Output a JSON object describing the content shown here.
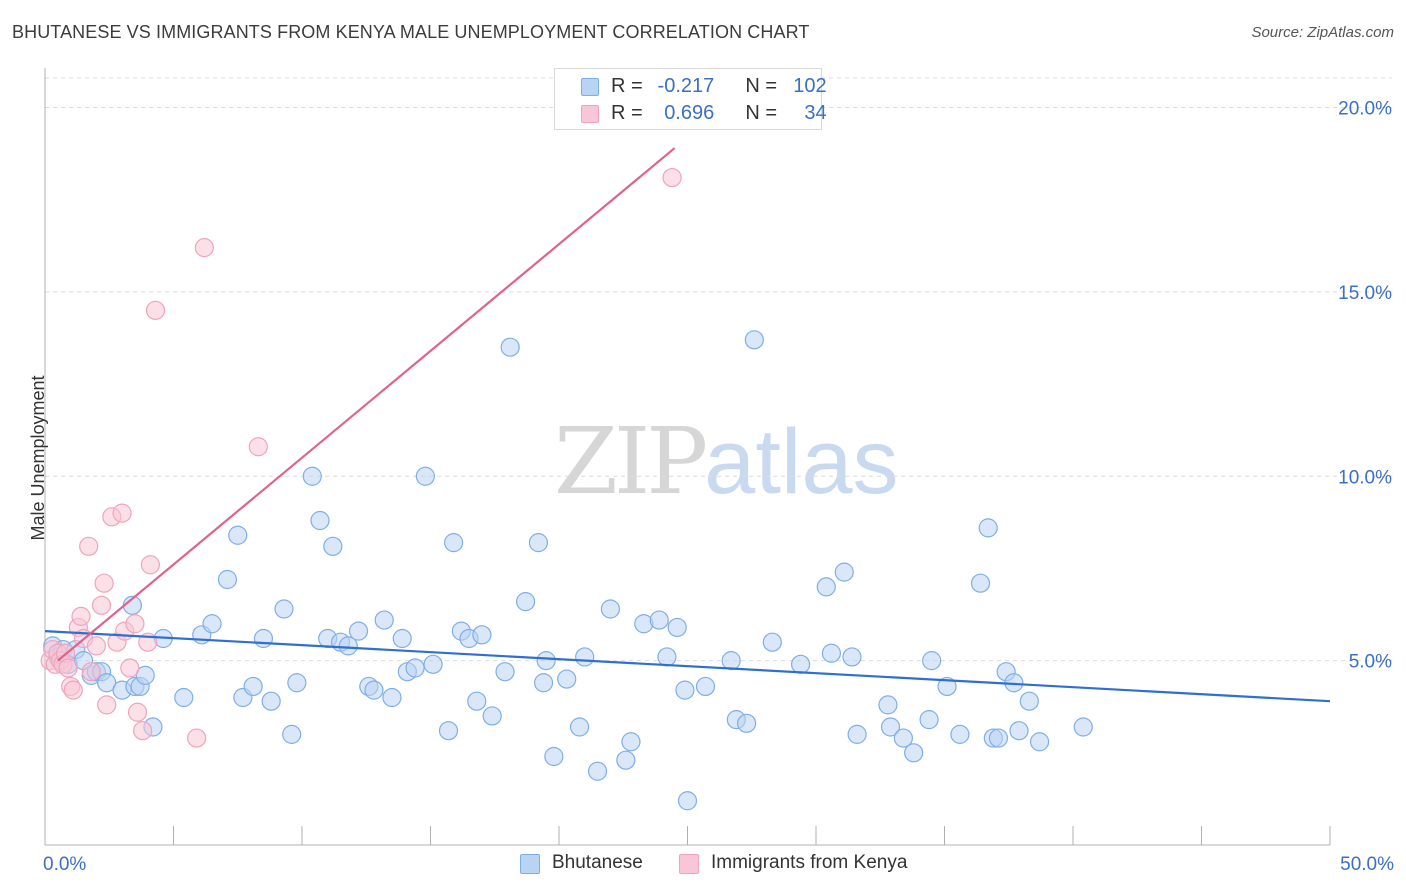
{
  "title": "BHUTANESE VS IMMIGRANTS FROM KENYA MALE UNEMPLOYMENT CORRELATION CHART",
  "source": "Source: ZipAtlas.com",
  "watermark": {
    "part1": "ZIP",
    "part2": "atlas"
  },
  "colors": {
    "blue": "#7eaee8",
    "blue_fill": "#b9d3f3",
    "blue_line": "#2f6fd0",
    "pink": "#f0a3bc",
    "pink_fill": "#f8c6d6",
    "pink_line": "#e0628d",
    "tick_label": "#3a6fc4",
    "grid": "#dcdcdc"
  },
  "legend_top": [
    {
      "r_label": "R =",
      "r_value": "-0.217",
      "n_label": "N =",
      "n_value": "102"
    },
    {
      "r_label": "R =",
      "r_value": "0.696",
      "n_label": "N =",
      "n_value": "34"
    }
  ],
  "chart_data": {
    "type": "scatter",
    "title": "BHUTANESE VS IMMIGRANTS FROM KENYA MALE UNEMPLOYMENT CORRELATION CHART",
    "xlabel": "",
    "ylabel": "Male Unemployment",
    "xlim": [
      0,
      50
    ],
    "ylim": [
      0,
      20.8
    ],
    "x_tick_labels": [
      "0.0%",
      "50.0%"
    ],
    "y_ticks": [
      5,
      10,
      15,
      20
    ],
    "y_tick_labels": [
      "5.0%",
      "10.0%",
      "15.0%",
      "20.0%"
    ],
    "grid": "horizontal dashed",
    "legend": "bottom-center",
    "series": [
      {
        "name": "Bhutanese",
        "trend": {
          "x": [
            0,
            50
          ],
          "y": [
            5.8,
            3.9
          ]
        },
        "points": [
          [
            0.3,
            5.4
          ],
          [
            0.5,
            5.1
          ],
          [
            0.7,
            5.3
          ],
          [
            0.9,
            4.9
          ],
          [
            1.2,
            5.3
          ],
          [
            1.5,
            5.0
          ],
          [
            1.8,
            4.6
          ],
          [
            2.0,
            4.7
          ],
          [
            2.2,
            4.7
          ],
          [
            2.4,
            4.4
          ],
          [
            3.0,
            4.2
          ],
          [
            3.4,
            6.5
          ],
          [
            3.5,
            4.3
          ],
          [
            3.7,
            4.3
          ],
          [
            3.9,
            4.6
          ],
          [
            4.2,
            3.2
          ],
          [
            4.6,
            5.6
          ],
          [
            5.4,
            4.0
          ],
          [
            6.1,
            5.7
          ],
          [
            6.5,
            6.0
          ],
          [
            7.1,
            7.2
          ],
          [
            7.5,
            8.4
          ],
          [
            7.7,
            4.0
          ],
          [
            8.1,
            4.3
          ],
          [
            8.5,
            5.6
          ],
          [
            8.8,
            3.9
          ],
          [
            9.3,
            6.4
          ],
          [
            9.6,
            3.0
          ],
          [
            9.8,
            4.4
          ],
          [
            10.4,
            10.0
          ],
          [
            10.7,
            8.8
          ],
          [
            11.0,
            5.6
          ],
          [
            11.2,
            8.1
          ],
          [
            11.5,
            5.5
          ],
          [
            11.8,
            5.4
          ],
          [
            12.2,
            5.8
          ],
          [
            12.6,
            4.3
          ],
          [
            12.8,
            4.2
          ],
          [
            13.2,
            6.1
          ],
          [
            13.5,
            4.0
          ],
          [
            13.9,
            5.6
          ],
          [
            14.1,
            4.7
          ],
          [
            14.4,
            4.8
          ],
          [
            14.8,
            10.0
          ],
          [
            15.1,
            4.9
          ],
          [
            15.7,
            3.1
          ],
          [
            15.9,
            8.2
          ],
          [
            16.2,
            5.8
          ],
          [
            16.5,
            5.6
          ],
          [
            16.8,
            3.9
          ],
          [
            17.0,
            5.7
          ],
          [
            17.4,
            3.5
          ],
          [
            18.1,
            13.5
          ],
          [
            17.9,
            4.7
          ],
          [
            18.7,
            6.6
          ],
          [
            19.2,
            8.2
          ],
          [
            19.4,
            4.4
          ],
          [
            19.5,
            5.0
          ],
          [
            19.8,
            2.4
          ],
          [
            20.3,
            4.5
          ],
          [
            20.8,
            3.2
          ],
          [
            21.0,
            5.1
          ],
          [
            21.5,
            2.0
          ],
          [
            22.0,
            6.4
          ],
          [
            22.6,
            2.3
          ],
          [
            22.8,
            2.8
          ],
          [
            23.3,
            6.0
          ],
          [
            23.9,
            6.1
          ],
          [
            24.2,
            5.1
          ],
          [
            24.6,
            5.9
          ],
          [
            24.9,
            4.2
          ],
          [
            25.0,
            1.2
          ],
          [
            25.7,
            4.3
          ],
          [
            26.7,
            5.0
          ],
          [
            26.9,
            3.4
          ],
          [
            27.3,
            3.3
          ],
          [
            27.6,
            13.7
          ],
          [
            28.3,
            5.5
          ],
          [
            29.4,
            4.9
          ],
          [
            30.4,
            7.0
          ],
          [
            30.6,
            5.2
          ],
          [
            31.1,
            7.4
          ],
          [
            31.4,
            5.1
          ],
          [
            31.6,
            3.0
          ],
          [
            32.8,
            3.8
          ],
          [
            32.9,
            3.2
          ],
          [
            33.4,
            2.9
          ],
          [
            33.8,
            2.5
          ],
          [
            34.4,
            3.4
          ],
          [
            34.5,
            5.0
          ],
          [
            35.1,
            4.3
          ],
          [
            35.6,
            3.0
          ],
          [
            36.4,
            7.1
          ],
          [
            36.7,
            8.6
          ],
          [
            36.9,
            2.9
          ],
          [
            37.1,
            2.9
          ],
          [
            37.4,
            4.7
          ],
          [
            37.7,
            4.4
          ],
          [
            37.9,
            3.1
          ],
          [
            38.3,
            3.9
          ],
          [
            38.7,
            2.8
          ],
          [
            40.4,
            3.2
          ]
        ]
      },
      {
        "name": "Immigrants from Kenya",
        "trend": {
          "x": [
            0.5,
            24.5
          ],
          "y": [
            5.0,
            18.9
          ]
        },
        "points": [
          [
            0.2,
            5.0
          ],
          [
            0.3,
            5.3
          ],
          [
            0.4,
            4.9
          ],
          [
            0.5,
            5.2
          ],
          [
            0.6,
            5.0
          ],
          [
            0.7,
            4.9
          ],
          [
            0.8,
            5.2
          ],
          [
            0.9,
            4.8
          ],
          [
            1.0,
            4.3
          ],
          [
            1.1,
            4.2
          ],
          [
            1.3,
            5.9
          ],
          [
            1.4,
            6.2
          ],
          [
            1.5,
            5.6
          ],
          [
            1.7,
            8.1
          ],
          [
            1.8,
            4.7
          ],
          [
            2.0,
            5.4
          ],
          [
            2.2,
            6.5
          ],
          [
            2.3,
            7.1
          ],
          [
            2.4,
            3.8
          ],
          [
            2.6,
            8.9
          ],
          [
            2.8,
            5.5
          ],
          [
            3.0,
            9.0
          ],
          [
            3.1,
            5.8
          ],
          [
            3.3,
            4.8
          ],
          [
            3.5,
            6.0
          ],
          [
            3.6,
            3.6
          ],
          [
            3.8,
            3.1
          ],
          [
            4.0,
            5.5
          ],
          [
            4.1,
            7.6
          ],
          [
            4.3,
            14.5
          ],
          [
            5.9,
            2.9
          ],
          [
            6.2,
            16.2
          ],
          [
            8.3,
            10.8
          ],
          [
            24.4,
            18.1
          ]
        ]
      }
    ]
  },
  "bottom_legend": [
    {
      "label": "Bhutanese"
    },
    {
      "label": "Immigrants from Kenya"
    }
  ]
}
